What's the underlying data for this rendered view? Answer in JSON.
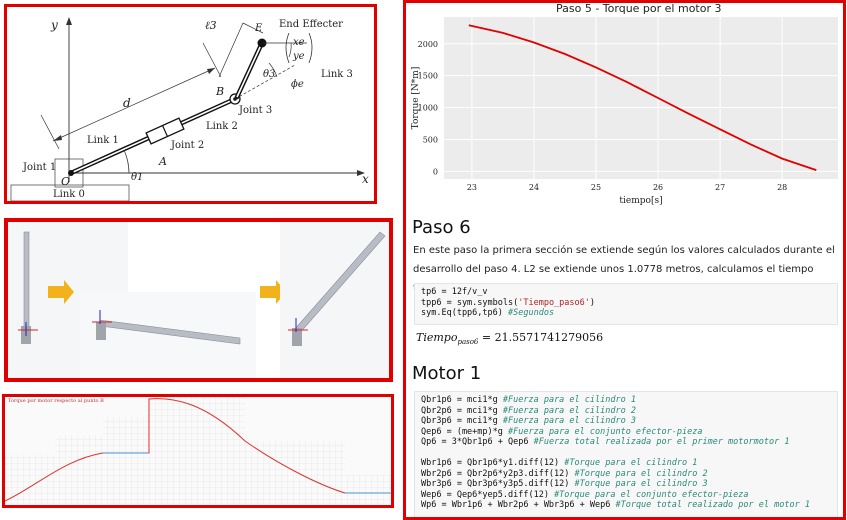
{
  "robot_diagram": {
    "labels": {
      "y_axis": "y",
      "x_axis": "x",
      "l3": "ℓ3",
      "end_effecter": "End Effecter",
      "xe": "xe",
      "ye": "ye",
      "theta3": "θ3",
      "phi_e": "ϕe",
      "link3": "Link 3",
      "B": "B",
      "E": "E",
      "joint3": "Joint 3",
      "d": "d",
      "link1": "Link 1",
      "link2": "Link 2",
      "joint2": "Joint 2",
      "A": "A",
      "joint1": "Joint 1",
      "origin": "O",
      "theta1": "θ1",
      "link0": "Link 0"
    }
  },
  "torque_preview": {
    "title": "Torque por motor respecto al punto B"
  },
  "notebook": {
    "plot_title": "Paso 5 - Torque por el motor 3",
    "section_paso6": "Paso 6",
    "paragraph": "En este paso la primera sección se extiende según los valores calculados durante el desarrollo del paso 4. L2 se extiende unos 1.0778 metros, calculamos el tiempo transcurrido para esto.",
    "output_lhs": "Tiempo",
    "output_sub": "paso6",
    "output_rhs": "= 21.5571741279056",
    "section_motor1": "Motor 1"
  },
  "chart_data": {
    "type": "line",
    "title": "Paso 5 - Torque por el motor 3",
    "xlabel": "tiempo[s]",
    "ylabel": "Torque [N*m]",
    "xticks": [
      23,
      24,
      25,
      26,
      27,
      28
    ],
    "yticks": [
      0,
      500,
      1000,
      1500,
      2000
    ],
    "xlim": [
      22.55,
      28.9
    ],
    "ylim": [
      -120,
      2420
    ],
    "series": [
      {
        "color": "#e00000",
        "x": [
          22.95,
          23.5,
          24.0,
          24.5,
          25.0,
          25.5,
          26.0,
          26.5,
          27.0,
          27.5,
          28.0,
          28.55
        ],
        "y": [
          2290,
          2170,
          2020,
          1840,
          1630,
          1400,
          1150,
          900,
          660,
          420,
          200,
          20
        ]
      }
    ]
  }
}
